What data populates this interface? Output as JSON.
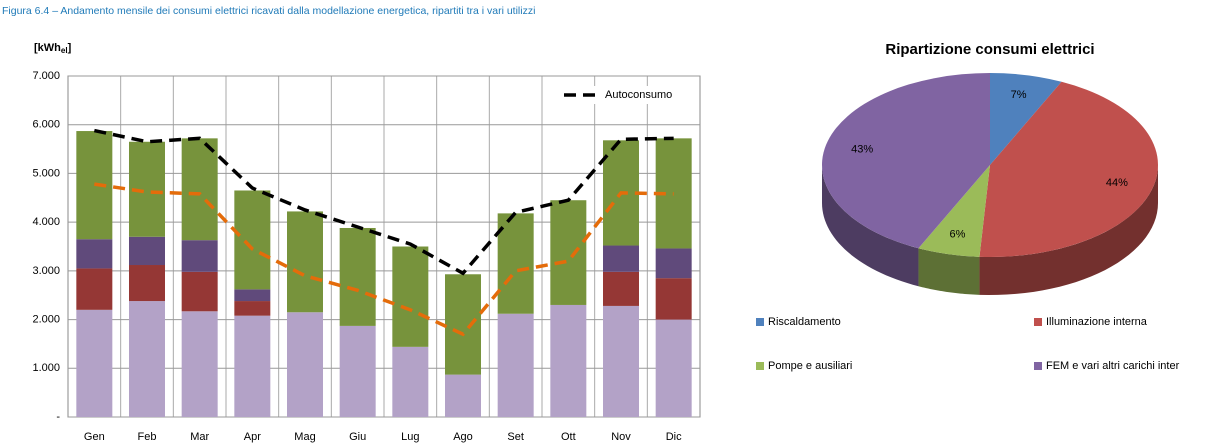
{
  "caption": "Figura 6.4 – Andamento mensile dei consumi elettrici  ricavati dalla modellazione energetica, ripartiti tra i vari utilizzi",
  "chart_data": [
    {
      "type": "bar",
      "y_label_base": "[kWh",
      "y_label_sub": "el",
      "y_label_end": "]",
      "categories": [
        "Gen",
        "Feb",
        "Mar",
        "Apr",
        "Mag",
        "Giu",
        "Lug",
        "Ago",
        "Set",
        "Ott",
        "Nov",
        "Dic"
      ],
      "stacked": true,
      "series": [
        {
          "color": "#b3a2c7",
          "values": [
            2200,
            2380,
            2170,
            2080,
            2150,
            1870,
            1440,
            870,
            2120,
            2300,
            2280,
            2000
          ]
        },
        {
          "color": "#953735",
          "values": [
            850,
            740,
            810,
            300,
            0,
            0,
            0,
            0,
            0,
            0,
            700,
            850
          ]
        },
        {
          "color": "#604a7b",
          "values": [
            600,
            580,
            650,
            240,
            0,
            0,
            0,
            0,
            0,
            0,
            540,
            610
          ]
        },
        {
          "color": "#77933c",
          "values": [
            2220,
            1950,
            2090,
            2030,
            2070,
            2010,
            2060,
            2060,
            2060,
            2150,
            2160,
            2260
          ]
        }
      ],
      "lines": [
        {
          "name": "Autoconsumo",
          "color": "#000000",
          "values": [
            5880,
            5650,
            5720,
            4700,
            4250,
            3900,
            3550,
            2950,
            4200,
            4450,
            5700,
            5720
          ]
        },
        {
          "color": "#e46c0a",
          "values": [
            4780,
            4620,
            4580,
            3450,
            2900,
            2600,
            2200,
            1700,
            3000,
            3200,
            4600,
            4580
          ]
        }
      ],
      "ylim": [
        0,
        7000
      ],
      "yticks": [
        {
          "value": 0,
          "label": "-"
        },
        {
          "value": 1000,
          "label": "1.000"
        },
        {
          "value": 2000,
          "label": "2.000"
        },
        {
          "value": 3000,
          "label": "3.000"
        },
        {
          "value": 4000,
          "label": "4.000"
        },
        {
          "value": 5000,
          "label": "5.000"
        },
        {
          "value": 6000,
          "label": "6.000"
        },
        {
          "value": 7000,
          "label": "7.000"
        }
      ],
      "grid": true,
      "legend": "upper right"
    },
    {
      "type": "pie",
      "title": "Ripartizione consumi elettrici",
      "categories": [
        "Riscaldamento",
        "Illuminazione interna",
        "Pompe e ausiliari",
        "FEM e vari altri carichi inter"
      ],
      "values": [
        7,
        44,
        6,
        43
      ],
      "value_labels": [
        "7%",
        "44%",
        "6%",
        "43%"
      ],
      "colors": [
        "#4f81bd",
        "#c0504d",
        "#9bbb59",
        "#8064a2"
      ],
      "legend": "bottom"
    }
  ]
}
